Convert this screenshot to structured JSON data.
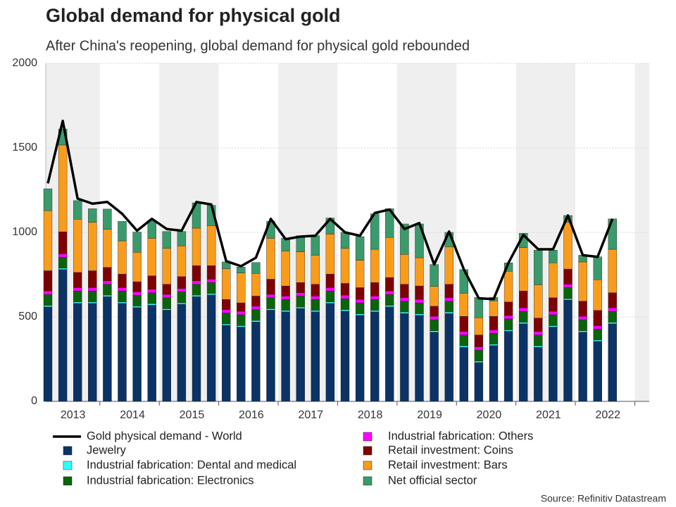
{
  "chart_data": {
    "type": "bar",
    "stacked": true,
    "title": "Global demand for physical gold",
    "subtitle": "After China's reopening, global demand for physical gold rebounded",
    "source": "Source: Refinitiv Datastream",
    "categories": [
      "2013",
      null,
      null,
      null,
      "2014",
      null,
      null,
      null,
      "2015",
      null,
      null,
      null,
      "2016",
      null,
      null,
      null,
      "2017",
      null,
      null,
      null,
      "2018",
      null,
      null,
      null,
      "2019",
      null,
      null,
      null,
      "2020",
      null,
      null,
      null,
      "2021",
      null,
      null,
      null,
      "2022",
      null,
      null
    ],
    "ylim": [
      0,
      2000
    ],
    "yticks": [
      0,
      500,
      1000,
      1500,
      2000
    ],
    "grid": true,
    "year_shading": true,
    "series": [
      {
        "name": "Gold physical demand - World",
        "type": "line",
        "color": "#000000",
        "values": [
          1290,
          1660,
          1200,
          1170,
          1180,
          1110,
          1010,
          1080,
          1020,
          1010,
          1180,
          1165,
          830,
          800,
          850,
          1080,
          960,
          975,
          980,
          1080,
          1000,
          980,
          1115,
          1135,
          1020,
          1055,
          810,
          1005,
          780,
          610,
          605,
          820,
          985,
          900,
          900,
          1100,
          865,
          855,
          1080
        ]
      },
      {
        "name": "Jewelry",
        "color": "#0b3365",
        "values": [
          560,
          780,
          580,
          580,
          620,
          580,
          555,
          570,
          540,
          575,
          620,
          630,
          450,
          440,
          470,
          540,
          530,
          550,
          530,
          580,
          535,
          510,
          530,
          560,
          520,
          510,
          410,
          520,
          320,
          230,
          330,
          415,
          460,
          320,
          440,
          600,
          410,
          355,
          460
        ]
      },
      {
        "name": "Industrial fabrication: Dental and medical",
        "color": "#33ffff",
        "values": [
          8,
          8,
          8,
          8,
          8,
          8,
          8,
          8,
          8,
          8,
          8,
          8,
          8,
          8,
          8,
          8,
          8,
          8,
          8,
          8,
          8,
          8,
          8,
          8,
          8,
          8,
          8,
          8,
          8,
          8,
          8,
          8,
          8,
          8,
          8,
          8,
          8,
          8,
          8
        ]
      },
      {
        "name": "Industrial fabrication: Electronics",
        "color": "#0a640a",
        "values": [
          65,
          65,
          65,
          65,
          65,
          65,
          65,
          65,
          65,
          65,
          65,
          65,
          65,
          65,
          65,
          65,
          65,
          65,
          65,
          65,
          65,
          65,
          65,
          65,
          65,
          65,
          65,
          65,
          65,
          65,
          65,
          65,
          65,
          65,
          65,
          65,
          65,
          65,
          65
        ]
      },
      {
        "name": "Industrial fabrication: Others",
        "color": "#ff00ff",
        "values": [
          20,
          20,
          20,
          20,
          20,
          20,
          20,
          20,
          20,
          20,
          20,
          20,
          20,
          20,
          20,
          20,
          20,
          20,
          20,
          20,
          20,
          20,
          20,
          20,
          20,
          20,
          20,
          20,
          20,
          20,
          20,
          20,
          20,
          20,
          20,
          20,
          20,
          20,
          20
        ]
      },
      {
        "name": "Retail investment: Coins",
        "color": "#7f0000",
        "values": [
          120,
          130,
          90,
          100,
          80,
          80,
          60,
          80,
          60,
          70,
          90,
          80,
          60,
          50,
          60,
          90,
          60,
          60,
          70,
          80,
          70,
          70,
          80,
          80,
          80,
          80,
          60,
          80,
          90,
          70,
          80,
          80,
          100,
          80,
          80,
          90,
          90,
          90,
          90
        ]
      },
      {
        "name": "Retail investment: Bars",
        "color": "#fa9c1b",
        "values": [
          355,
          514,
          315,
          287,
          225,
          197,
          174,
          222,
          212,
          182,
          222,
          237,
          182,
          177,
          134,
          242,
          207,
          182,
          172,
          237,
          207,
          162,
          197,
          237,
          177,
          167,
          117,
          222,
          137,
          102,
          92,
          182,
          257,
          197,
          207,
          277,
          232,
          182,
          257
        ]
      },
      {
        "name": "Net official sector",
        "color": "#3a9a6c",
        "values": [
          130,
          95,
          110,
          80,
          120,
          115,
          120,
          105,
          100,
          85,
          150,
          120,
          40,
          35,
          65,
          100,
          75,
          95,
          115,
          95,
          95,
          140,
          210,
          170,
          180,
          200,
          130,
          85,
          140,
          120,
          20,
          50,
          85,
          205,
          75,
          40,
          40,
          135,
          180
        ]
      }
    ]
  }
}
